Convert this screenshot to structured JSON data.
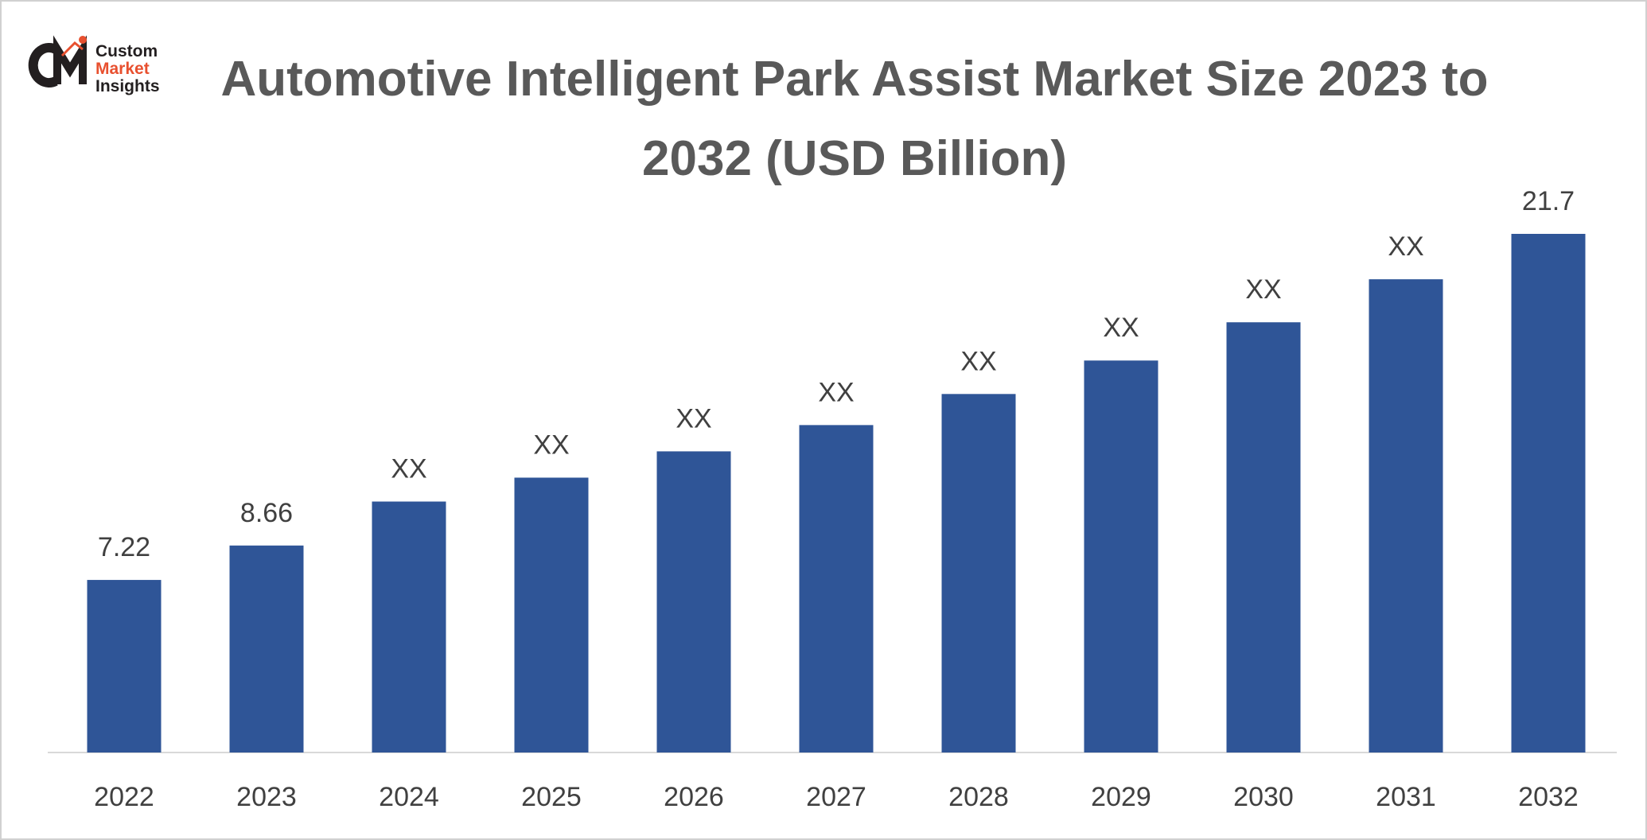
{
  "brand": {
    "line1": "Custom",
    "line2": "Market",
    "line3": "Insights"
  },
  "chart_data": {
    "type": "bar",
    "title": "Automotive Intelligent Park Assist Market Size 2023 to 2032 (USD Billion)",
    "categories": [
      "2022",
      "2023",
      "2024",
      "2025",
      "2026",
      "2027",
      "2028",
      "2029",
      "2030",
      "2031",
      "2032"
    ],
    "values": [
      7.22,
      8.66,
      10.5,
      11.5,
      12.6,
      13.7,
      15.0,
      16.4,
      18.0,
      19.8,
      21.7
    ],
    "value_labels": [
      "7.22",
      "8.66",
      "XX",
      "XX",
      "XX",
      "XX",
      "XX",
      "XX",
      "XX",
      "XX",
      "21.7"
    ],
    "color": "#2f5597"
  }
}
